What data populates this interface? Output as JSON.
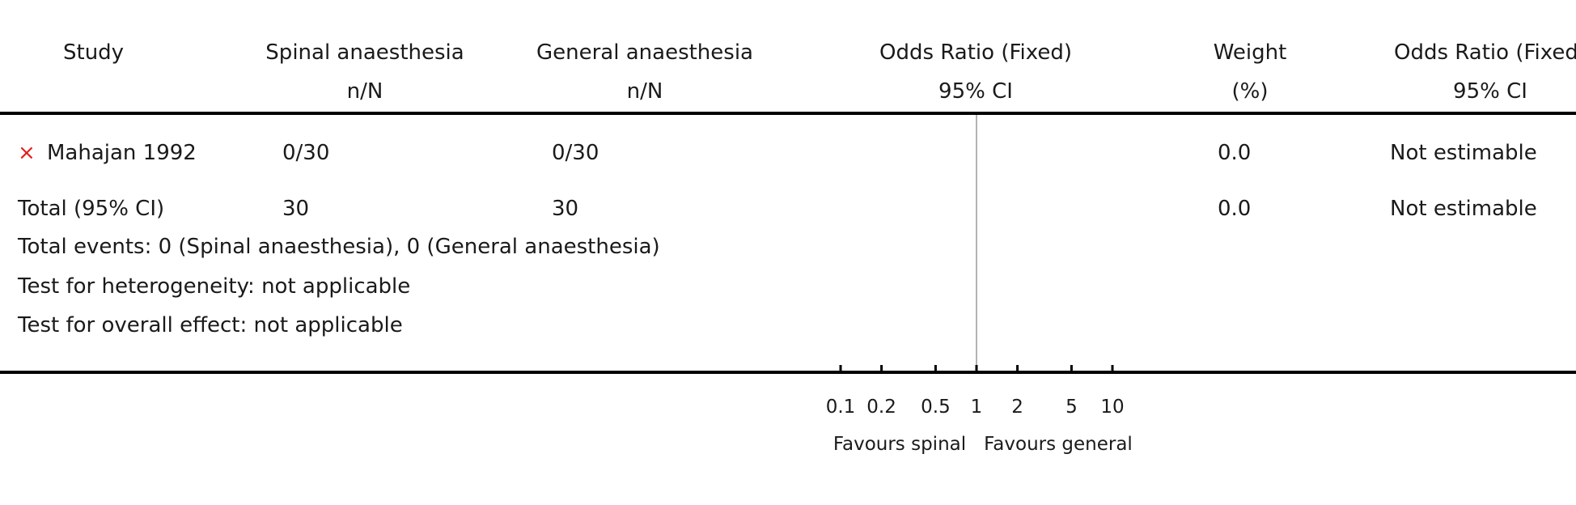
{
  "headers": {
    "study": "Study",
    "spinal": "Spinal anaesthesia",
    "spinal_sub": "n/N",
    "general": "General anaesthesia",
    "general_sub": "n/N",
    "or_fixed": "Odds Ratio (Fixed)",
    "or_fixed_sub": "95% CI",
    "weight": "Weight",
    "weight_sub": "(%)",
    "or_fixed2": "Odds Ratio (Fixed)",
    "or_fixed2_sub": "95% CI"
  },
  "studies": [
    {
      "marker": "×",
      "name": "Mahajan 1992",
      "spinal": "0/30",
      "general": "0/30",
      "weight": "0.0",
      "or_text": "Not estimable"
    }
  ],
  "total": {
    "label": "Total (95% CI)",
    "spinal": "30",
    "general": "30",
    "weight": "0.0",
    "or_text": "Not estimable"
  },
  "footnotes": {
    "events": "Total events: 0 (Spinal anaesthesia), 0 (General anaesthesia)",
    "heterogeneity": "Test for heterogeneity: not applicable",
    "overall": "Test for overall effect: not applicable"
  },
  "axis": {
    "favours_left": "Favours spinal",
    "favours_right": "Favours general"
  },
  "colors": {
    "marker": "#e02020",
    "rule": "#000000",
    "null_line": "#999999"
  },
  "chart_data": {
    "type": "forest",
    "scale": "log",
    "null_value": 1,
    "xlim": [
      0.1,
      10
    ],
    "ticks": [
      0.1,
      0.2,
      0.5,
      1,
      2,
      5,
      10
    ],
    "tick_labels": [
      "0.1",
      "0.2",
      "0.5",
      "1",
      "2",
      "5",
      "10"
    ],
    "series": [
      {
        "name": "Mahajan 1992",
        "estimable": false,
        "weight": 0.0
      }
    ]
  }
}
